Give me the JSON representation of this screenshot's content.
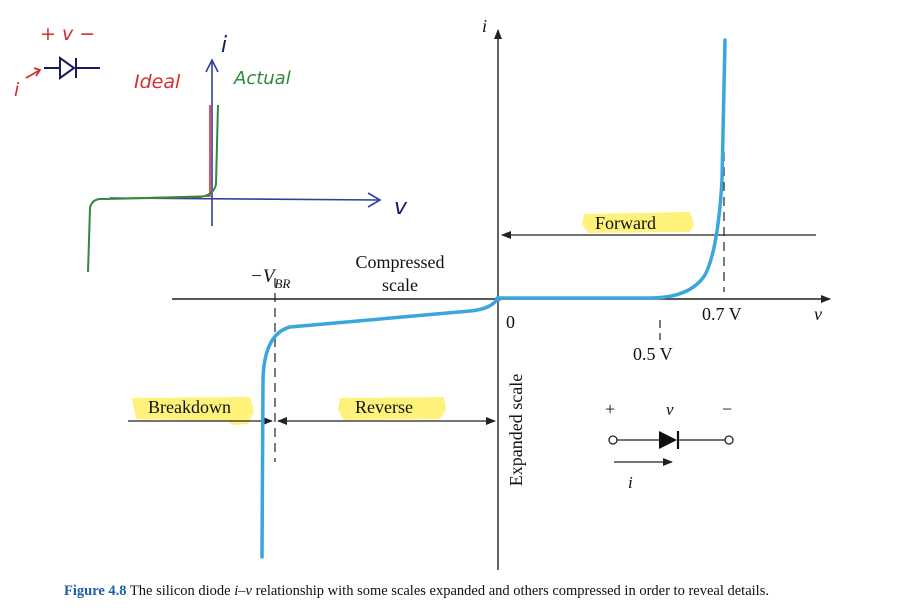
{
  "figure": {
    "i_axis_label": "i",
    "v_axis_label": "v",
    "origin_label": "0",
    "vbr_label_prefix": "−V",
    "vbr_label_sub": "BR",
    "compressed_line1": "Compressed",
    "compressed_line2": "scale",
    "expanded_label": "Expanded scale",
    "forward_label": "Forward",
    "reverse_label": "Reverse",
    "breakdown_label": "Breakdown",
    "tick_05": "0.5 V",
    "tick_07": "0.7 V",
    "symbol": {
      "plus": "+",
      "minus": "−",
      "v": "v",
      "i": "i"
    },
    "curve_color": "#3aa7dc",
    "highlight_color": "#fff176"
  },
  "sketch": {
    "polarity": "+ v −",
    "current": "i",
    "ideal_label": "Ideal",
    "actual_label": "Actual",
    "i_axis": "i",
    "v_axis": "v",
    "ideal_color": "#d32f2f",
    "actual_color": "#2e8b3a",
    "axis_color": "#2f3fa0"
  },
  "caption": {
    "label": "Figure 4.8",
    "text_before": " The silicon diode ",
    "text_italic": "i–v",
    "text_after": " relationship with some scales expanded and others compressed in order to reveal details."
  }
}
